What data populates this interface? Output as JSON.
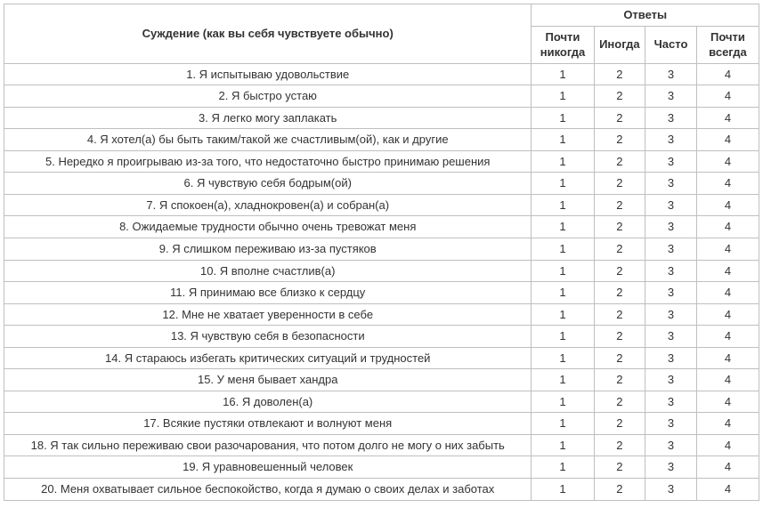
{
  "table": {
    "type": "table",
    "border_color": "#bfbfbf",
    "background_color": "#ffffff",
    "text_color": "#333333",
    "font_family": "Arial",
    "font_size_pt": 10,
    "header": {
      "statement": "Суждение (как вы себя чувствуете обычно)",
      "answers_group": "Ответы",
      "answers": [
        "Почти никогда",
        "Иногда",
        "Часто",
        "Почти всегда"
      ]
    },
    "rows": [
      {
        "statement": "1. Я испытываю удовольствие",
        "values": [
          "1",
          "2",
          "3",
          "4"
        ]
      },
      {
        "statement": "2. Я быстро устаю",
        "values": [
          "1",
          "2",
          "3",
          "4"
        ]
      },
      {
        "statement": "3. Я легко могу заплакать",
        "values": [
          "1",
          "2",
          "3",
          "4"
        ]
      },
      {
        "statement": "4. Я хотел(а) бы быть таким/такой же счастливым(ой), как и другие",
        "values": [
          "1",
          "2",
          "3",
          "4"
        ]
      },
      {
        "statement": "5. Нередко я проигрываю из-за того, что недостаточно быстро принимаю решения",
        "values": [
          "1",
          "2",
          "3",
          "4"
        ]
      },
      {
        "statement": "6. Я чувствую себя бодрым(ой)",
        "values": [
          "1",
          "2",
          "3",
          "4"
        ]
      },
      {
        "statement": "7. Я спокоен(а), хладнокровен(а) и собран(а)",
        "values": [
          "1",
          "2",
          "3",
          "4"
        ]
      },
      {
        "statement": "8. Ожидаемые трудности обычно очень тревожат меня",
        "values": [
          "1",
          "2",
          "3",
          "4"
        ]
      },
      {
        "statement": "9. Я слишком переживаю из-за пустяков",
        "values": [
          "1",
          "2",
          "3",
          "4"
        ]
      },
      {
        "statement": "10. Я вполне счастлив(а)",
        "values": [
          "1",
          "2",
          "3",
          "4"
        ]
      },
      {
        "statement": "11. Я принимаю все близко к сердцу",
        "values": [
          "1",
          "2",
          "3",
          "4"
        ]
      },
      {
        "statement": "12. Мне не хватает уверенности в себе",
        "values": [
          "1",
          "2",
          "3",
          "4"
        ]
      },
      {
        "statement": "13. Я чувствую себя в безопасности",
        "values": [
          "1",
          "2",
          "3",
          "4"
        ]
      },
      {
        "statement": "14. Я стараюсь избегать критических ситуаций и трудностей",
        "values": [
          "1",
          "2",
          "3",
          "4"
        ]
      },
      {
        "statement": "15. У меня бывает хандра",
        "values": [
          "1",
          "2",
          "3",
          "4"
        ]
      },
      {
        "statement": "16. Я доволен(а)",
        "values": [
          "1",
          "2",
          "3",
          "4"
        ]
      },
      {
        "statement": "17. Всякие пустяки отвлекают и волнуют меня",
        "values": [
          "1",
          "2",
          "3",
          "4"
        ]
      },
      {
        "statement": "18. Я так сильно переживаю свои разочарования, что потом долго не могу о них забыть",
        "values": [
          "1",
          "2",
          "3",
          "4"
        ]
      },
      {
        "statement": "19. Я уравновешенный человек",
        "values": [
          "1",
          "2",
          "3",
          "4"
        ]
      },
      {
        "statement": "20. Меня охватывает сильное беспокойство, когда я думаю о своих делах и заботах",
        "values": [
          "1",
          "2",
          "3",
          "4"
        ]
      }
    ]
  }
}
